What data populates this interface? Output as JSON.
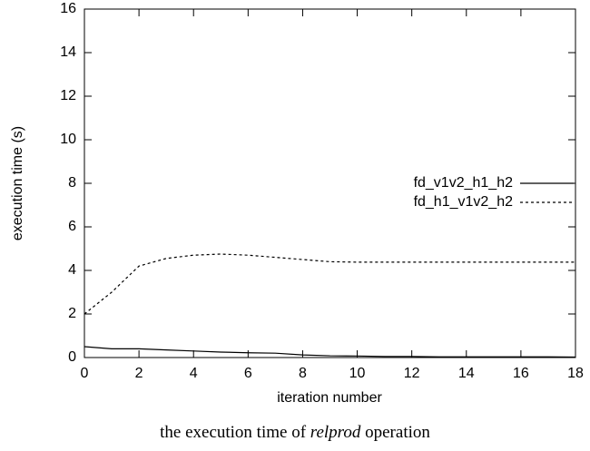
{
  "chart_data": {
    "type": "line",
    "x_label": "iteration number",
    "y_label": "execution time (s)",
    "caption": [
      "the execution time of ",
      "relprod",
      " operation"
    ],
    "x": [
      0,
      1,
      2,
      3,
      4,
      5,
      6,
      7,
      8,
      9,
      10,
      11,
      12,
      13,
      14,
      15,
      16,
      17,
      18
    ],
    "series": [
      {
        "name": "fd_v1v2_h1_h2",
        "color": "#000000",
        "dash": "solid",
        "values": [
          0.5,
          0.4,
          0.4,
          0.35,
          0.3,
          0.25,
          0.22,
          0.2,
          0.12,
          0.08,
          0.07,
          0.05,
          0.05,
          0.03,
          0.03,
          0.03,
          0.03,
          0.03,
          0.02
        ]
      },
      {
        "name": "fd_h1_v1v2_h2",
        "color": "#000000",
        "dash": "dotted",
        "values": [
          2.0,
          3.0,
          4.2,
          4.55,
          4.7,
          4.75,
          4.7,
          4.6,
          4.5,
          4.4,
          4.38,
          4.38,
          4.38,
          4.38,
          4.38,
          4.38,
          4.38,
          4.38,
          4.38
        ]
      }
    ],
    "xlim": [
      0,
      18
    ],
    "xticks": [
      0,
      2,
      4,
      6,
      8,
      10,
      12,
      14,
      16,
      18
    ],
    "ylim": [
      0,
      16
    ],
    "yticks": [
      0,
      2,
      4,
      6,
      8,
      10,
      12,
      14,
      16
    ],
    "grid": false,
    "legend": "right"
  }
}
